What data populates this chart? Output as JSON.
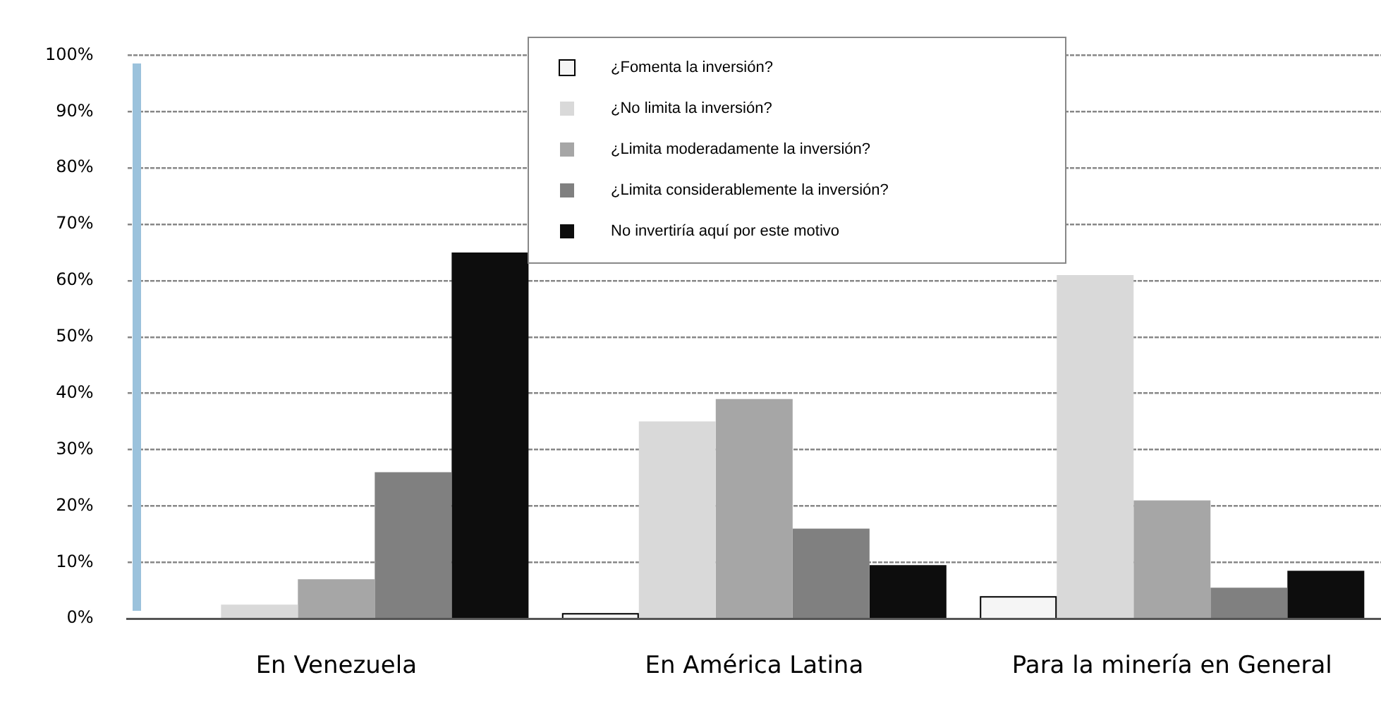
{
  "chart_data": {
    "type": "bar",
    "categories": [
      "En Venezuela",
      "En América Latina",
      "Para la minería en General"
    ],
    "series": [
      {
        "name": "¿Fomenta la inversión?",
        "color": "#f5f5f5",
        "values": [
          0,
          1,
          4
        ]
      },
      {
        "name": "¿No limita la inversión?",
        "color": "#d9d9d9",
        "values": [
          2.5,
          35,
          61
        ]
      },
      {
        "name": "¿Limita moderadamente la inversión?",
        "color": "#a6a6a6",
        "values": [
          7,
          39,
          21
        ]
      },
      {
        "name": "¿Limita considerablemente  la inversión?",
        "color": "#808080",
        "values": [
          26,
          16,
          5.5
        ]
      },
      {
        "name": "No invertiría aquí por este motivo",
        "color": "#0d0d0d",
        "values": [
          65,
          9.5,
          8.5
        ]
      }
    ],
    "ylim": [
      0,
      100
    ],
    "yticks": [
      {
        "value": 0,
        "label": "0%"
      },
      {
        "value": 10,
        "label": "10%"
      },
      {
        "value": 20,
        "label": "20%"
      },
      {
        "value": 30,
        "label": "30%"
      },
      {
        "value": 40,
        "label": "40%"
      },
      {
        "value": 50,
        "label": "50%"
      },
      {
        "value": 60,
        "label": "60%"
      },
      {
        "value": 70,
        "label": "70%"
      },
      {
        "value": 80,
        "label": "80%"
      },
      {
        "value": 90,
        "label": "90%"
      },
      {
        "value": 100,
        "label": "100%"
      }
    ],
    "grid": "y",
    "legend": "top"
  }
}
